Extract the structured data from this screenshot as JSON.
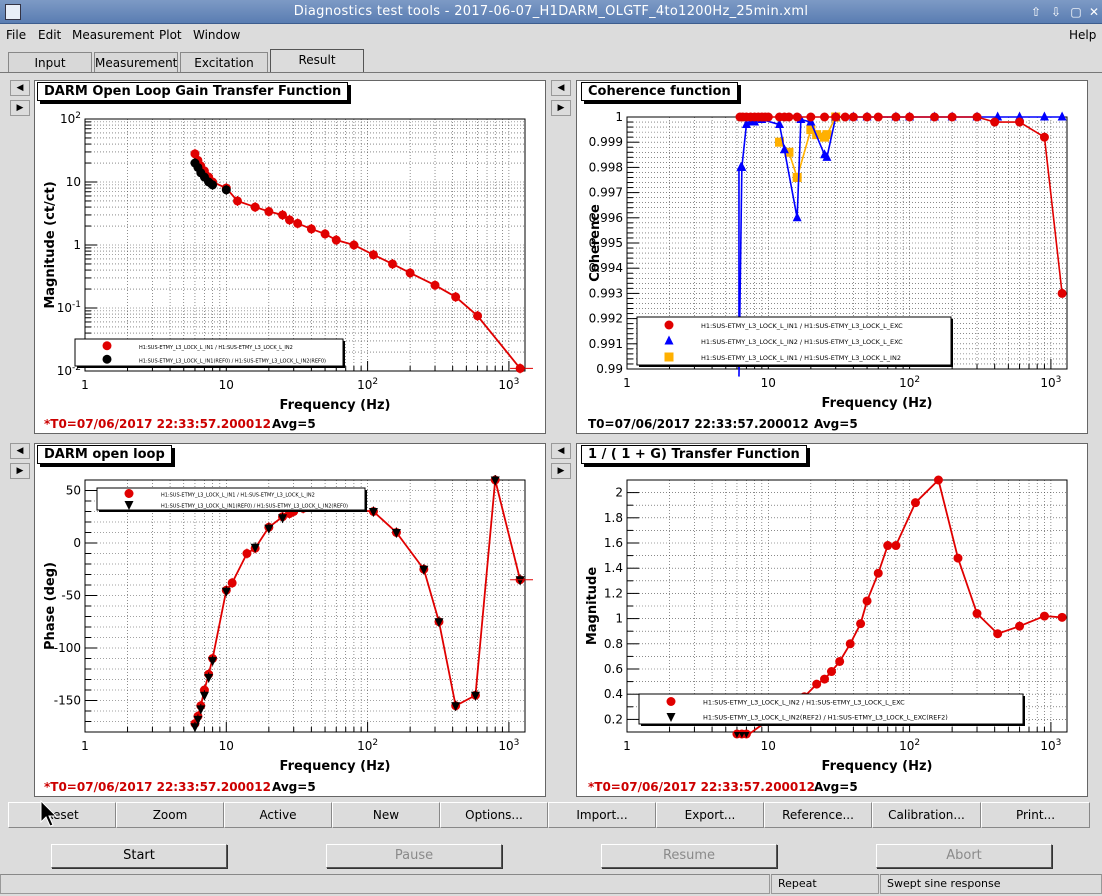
{
  "window": {
    "title": "Diagnostics test tools - 2017-06-07_H1DARM_OLGTF_4to1200Hz_25min.xml"
  },
  "menu": [
    "File",
    "Edit",
    "Measurement",
    "Plot",
    "Window"
  ],
  "menu_help": "Help",
  "tabs": [
    "Input",
    "Measurement",
    "Excitation",
    "Result"
  ],
  "active_tab": "Result",
  "toolbar": [
    "Reset",
    "Zoom",
    "Active",
    "New",
    "Options...",
    "Import...",
    "Export...",
    "Reference...",
    "Calibration...",
    "Print..."
  ],
  "controls": {
    "start": "Start",
    "pause": "Pause",
    "resume": "Resume",
    "abort": "Abort"
  },
  "status": {
    "repeat": "Repeat",
    "mode": "Swept sine response"
  },
  "colors": {
    "red": "#e00000",
    "black": "#000000",
    "blue": "#0000ff",
    "orange": "#ffb000",
    "t0_red": "#cc0000"
  },
  "icons": {
    "pad_left": "arrow-left-icon",
    "pad_right": "arrow-right-icon",
    "pointer": "mouse-cursor-icon"
  },
  "panels": {
    "p1": {
      "title": "DARM Open Loop Gain Transfer Function",
      "t0": "*T0=07/06/2017 22:33:57.200012",
      "avg": "Avg=5"
    },
    "p2": {
      "title": "Coherence function",
      "t0": "T0=07/06/2017 22:33:57.200012",
      "avg": "Avg=5"
    },
    "p3": {
      "title": "DARM open loop",
      "t0": "*T0=07/06/2017 22:33:57.200012",
      "avg": "Avg=5"
    },
    "p4": {
      "title": "1 / ( 1 + G) Transfer Function",
      "t0": "*T0=07/06/2017 22:33:57.200012",
      "avg": "Avg=5"
    }
  },
  "chart_data": [
    {
      "type": "scatter",
      "title": "DARM Open Loop Gain Transfer Function",
      "xlabel": "Frequency (Hz)",
      "ylabel": "Magnitude (ct/ct)",
      "xscale": "log",
      "yscale": "log",
      "xlim": [
        1,
        1300
      ],
      "ylim": [
        0.01,
        100
      ],
      "xticks": [
        "1",
        "10",
        "10^2",
        "10^3"
      ],
      "yticks": [
        "10^-2",
        "10^-1",
        "1",
        "10",
        "10^2"
      ],
      "grid": true,
      "legend_position": "bottom-left",
      "series": [
        {
          "name": "H1:SUS-ETMY_L3_LOCK_L_IN1 / H1:SUS-ETMY_L3_LOCK_L_IN2",
          "color": "#e00000",
          "marker": "circle",
          "line": true,
          "x": [
            6,
            6.3,
            6.6,
            7,
            7.5,
            8,
            10,
            12,
            16,
            20,
            25,
            28,
            32,
            40,
            50,
            60,
            80,
            110,
            150,
            200,
            300,
            420,
            600,
            1200
          ],
          "y": [
            28,
            22,
            18,
            15,
            12,
            10,
            8,
            5,
            4,
            3.4,
            3,
            2.5,
            2.2,
            1.8,
            1.5,
            1.2,
            1,
            0.7,
            0.5,
            0.36,
            0.23,
            0.15,
            0.075,
            0.011
          ]
        },
        {
          "name": "H1:SUS-ETMY_L3_LOCK_L_IN1(REF0) / H1:SUS-ETMY_L3_LOCK_L_IN2(REF0)",
          "color": "#000000",
          "marker": "circle",
          "line": false,
          "x": [
            6,
            6.3,
            6.6,
            7,
            7.5,
            8,
            10
          ],
          "y": [
            20,
            17,
            14,
            12,
            10,
            9,
            7.5
          ]
        }
      ]
    },
    {
      "type": "line",
      "title": "Coherence function",
      "xlabel": "Frequency (Hz)",
      "ylabel": "Coherence",
      "xscale": "log",
      "xlim": [
        1,
        1300
      ],
      "ylim": [
        0.99,
        1.0
      ],
      "xticks": [
        "1",
        "10",
        "10^2",
        "10^3"
      ],
      "yticks": [
        "0.99",
        "0.991",
        "0.992",
        "0.993",
        "0.994",
        "0.995",
        "0.996",
        "0.997",
        "0.998",
        "0.999",
        "1"
      ],
      "grid": true,
      "legend_position": "bottom",
      "series": [
        {
          "name": "H1:SUS-ETMY_L3_LOCK_L_IN1 / H1:SUS-ETMY_L3_LOCK_L_EXC",
          "color": "#e00000",
          "marker": "circle",
          "x": [
            6.3,
            6.6,
            7,
            7.5,
            8,
            8.5,
            9,
            9.5,
            10,
            12,
            13,
            14,
            16,
            20,
            25,
            30,
            35,
            40,
            50,
            60,
            80,
            100,
            150,
            200,
            300,
            400,
            600,
            900,
            1200
          ],
          "y": [
            1,
            1,
            1,
            1,
            1,
            1,
            1,
            1,
            1,
            1,
            1,
            1,
            1,
            1,
            1,
            1,
            1,
            1,
            1,
            1,
            1,
            1,
            1,
            1,
            1,
            0.9998,
            0.9998,
            0.9992,
            0.993
          ]
        },
        {
          "name": "H1:SUS-ETMY_L3_LOCK_L_IN2 / H1:SUS-ETMY_L3_LOCK_L_EXC",
          "color": "#0000ff",
          "marker": "triangle",
          "x": [
            6.2,
            6.5,
            7,
            7.5,
            8,
            9,
            12,
            13,
            16,
            17,
            20,
            25,
            26,
            30,
            40,
            50,
            80,
            100,
            150,
            200,
            300,
            420,
            600,
            900,
            1200
          ],
          "y": [
            0.98,
            0.998,
            0.9997,
            0.9998,
            0.9998,
            0.9999,
            0.9997,
            0.9987,
            0.996,
            0.9999,
            0.9998,
            0.9985,
            0.9984,
            1,
            1,
            1,
            1,
            1,
            1,
            1,
            1,
            1,
            1,
            1,
            1
          ]
        },
        {
          "name": "H1:SUS-ETMY_L3_LOCK_L_IN1 / H1:SUS-ETMY_L3_LOCK_L_IN2",
          "color": "#ffb000",
          "marker": "square",
          "x": [
            12,
            14,
            16,
            20,
            22,
            25,
            26,
            30
          ],
          "y": [
            0.999,
            0.9986,
            0.9976,
            0.9995,
            0.9993,
            0.9992,
            0.9993,
            1
          ]
        }
      ]
    },
    {
      "type": "line",
      "title": "DARM open loop",
      "xlabel": "Frequency (Hz)",
      "ylabel": "Phase (deg)",
      "xscale": "log",
      "xlim": [
        1,
        1300
      ],
      "ylim": [
        -180,
        60
      ],
      "xticks": [
        "1",
        "10",
        "10^2",
        "10^3"
      ],
      "yticks": [
        "-150",
        "-100",
        "-50",
        "0",
        "50"
      ],
      "grid": true,
      "legend_position": "top-left",
      "series": [
        {
          "name": "H1:SUS-ETMY_L3_LOCK_L_IN1 / H1:SUS-ETMY_L3_LOCK_L_IN2",
          "color": "#e00000",
          "marker": "circle",
          "line": true,
          "x": [
            6,
            6.3,
            6.6,
            7,
            7.5,
            8,
            10,
            11,
            14,
            16,
            20,
            25,
            28,
            30,
            35,
            40,
            110,
            160,
            250,
            320,
            420,
            580,
            800,
            1200
          ],
          "y": [
            -172,
            -165,
            -155,
            -140,
            -125,
            -110,
            -45,
            -38,
            -10,
            -5,
            15,
            25,
            28,
            30,
            33,
            35,
            30,
            10,
            -25,
            -75,
            -155,
            -145,
            60,
            -35
          ]
        },
        {
          "name": "H1:SUS-ETMY_L3_LOCK_L_IN1(REF0) / H1:SUS-ETMY_L3_LOCK_L_IN2(REF0)",
          "color": "#000000",
          "marker": "triangle-down",
          "line": false,
          "x": [
            6,
            6.3,
            6.6,
            7,
            7.5,
            8,
            10,
            16,
            20,
            25,
            40,
            110,
            160,
            250,
            320,
            420,
            580,
            800,
            1200
          ],
          "y": [
            -175,
            -168,
            -158,
            -145,
            -128,
            -112,
            -46,
            -4,
            14,
            24,
            34,
            30,
            10,
            -25,
            -75,
            -155,
            -145,
            60,
            -35
          ]
        }
      ]
    },
    {
      "type": "line",
      "title": "1 / ( 1 + G) Transfer Function",
      "xlabel": "Frequency (Hz)",
      "ylabel": "Magnitude",
      "xscale": "log",
      "xlim": [
        1,
        1300
      ],
      "ylim": [
        0.1,
        2.1
      ],
      "xticks": [
        "1",
        "10",
        "10^2",
        "10^3"
      ],
      "yticks": [
        "0.2",
        "0.4",
        "0.6",
        "0.8",
        "1",
        "1.2",
        "1.4",
        "1.6",
        "1.8",
        "2"
      ],
      "grid": true,
      "legend_position": "bottom",
      "series": [
        {
          "name": "H1:SUS-ETMY_L3_LOCK_L_IN2 / H1:SUS-ETMY_L3_LOCK_L_EXC",
          "color": "#e00000",
          "marker": "circle",
          "line": true,
          "x": [
            6,
            6.5,
            7,
            16,
            18,
            22,
            25,
            28,
            32,
            38,
            45,
            50,
            60,
            70,
            80,
            110,
            160,
            220,
            300,
            420,
            600,
            900,
            1200
          ],
          "y": [
            0.04,
            0.05,
            0.05,
            0.36,
            0.38,
            0.48,
            0.52,
            0.58,
            0.66,
            0.8,
            0.96,
            1.14,
            1.36,
            1.58,
            1.58,
            1.92,
            2.1,
            1.48,
            1.04,
            0.88,
            0.94,
            1.02,
            1.01
          ]
        },
        {
          "name": "H1:SUS-ETMY_L3_LOCK_L_IN2(REF2) / H1:SUS-ETMY_L3_LOCK_L_EXC(REF2)",
          "color": "#000000",
          "marker": "triangle-down",
          "line": false,
          "x": [
            6,
            6.5,
            7,
            16,
            18
          ],
          "y": [
            0.04,
            0.05,
            0.05,
            0.36,
            0.37
          ]
        }
      ]
    }
  ]
}
